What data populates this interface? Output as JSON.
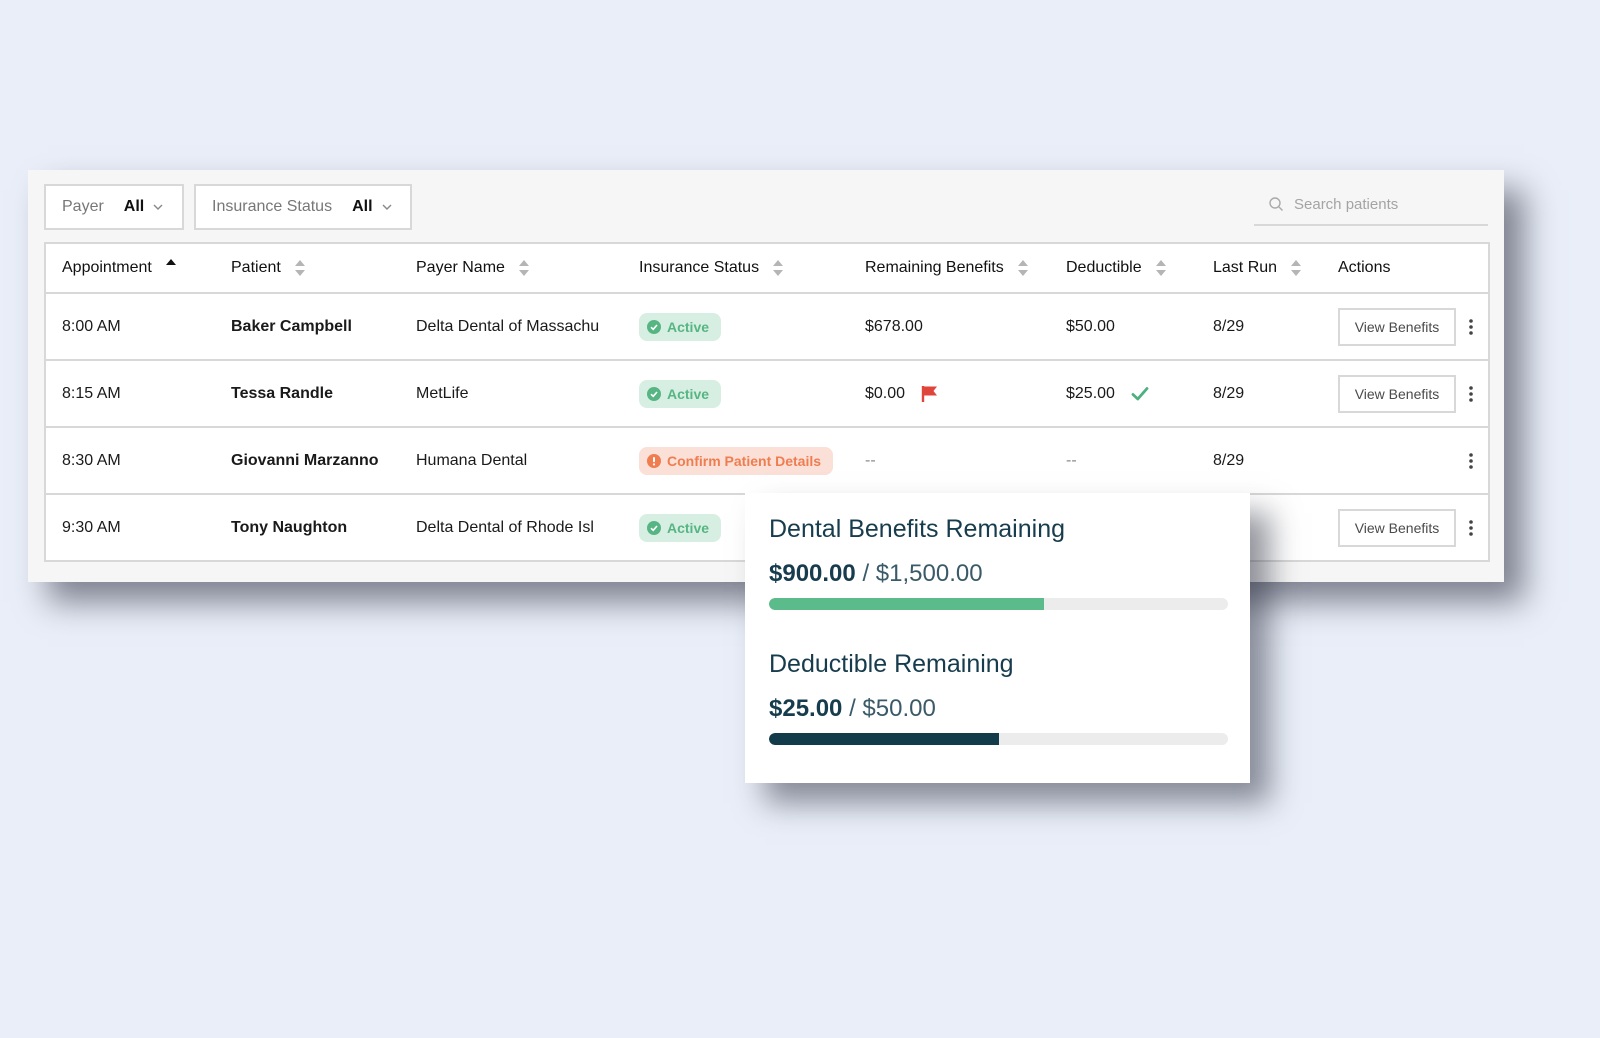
{
  "filters": {
    "payer": {
      "label": "Payer",
      "value": "All"
    },
    "status": {
      "label": "Insurance Status",
      "value": "All"
    }
  },
  "search": {
    "placeholder": "Search patients"
  },
  "columns": [
    "Appointment",
    "Patient",
    "Payer Name",
    "Insurance Status",
    "Remaining Benefits",
    "Deductible",
    "Last Run",
    "Actions"
  ],
  "rows": [
    {
      "time": "8:00 AM",
      "patient": "Baker Campbell",
      "payer": "Delta Dental of Massachu",
      "status": "Active",
      "remaining": "$678.00",
      "deductible": "$50.00",
      "last_run": "8/29",
      "action": "View Benefits"
    },
    {
      "time": "8:15 AM",
      "patient": "Tessa Randle",
      "payer": "MetLife",
      "status": "Active",
      "remaining": "$0.00",
      "deductible": "$25.00",
      "last_run": "8/29",
      "action": "View Benefits"
    },
    {
      "time": "8:30 AM",
      "patient": "Giovanni Marzanno",
      "payer": "Humana Dental",
      "status": "Confirm Patient Details",
      "remaining": "--",
      "deductible": "--",
      "last_run": "8/29",
      "action": ""
    },
    {
      "time": "9:30 AM",
      "patient": "Tony Naughton",
      "payer": "Delta Dental of Rhode Isl",
      "status": "Active",
      "remaining": "",
      "deductible": "",
      "last_run": "",
      "action": "View Benefits"
    }
  ],
  "popover": {
    "benefits": {
      "title": "Dental Benefits Remaining",
      "remaining": "$900.00",
      "separator": "/",
      "total": "$1,500.00",
      "fraction": 0.6
    },
    "deductible": {
      "title": "Deductible Remaining",
      "remaining": "$25.00",
      "separator": "/",
      "total": "$50.00",
      "fraction": 0.5
    }
  },
  "colors": {
    "active": "#57b583",
    "confirm": "#ef7d50",
    "flag": "#e0453c",
    "check": "#4fb07f",
    "bar_green": "#5cbb8a",
    "bar_dark": "#133c4b"
  }
}
